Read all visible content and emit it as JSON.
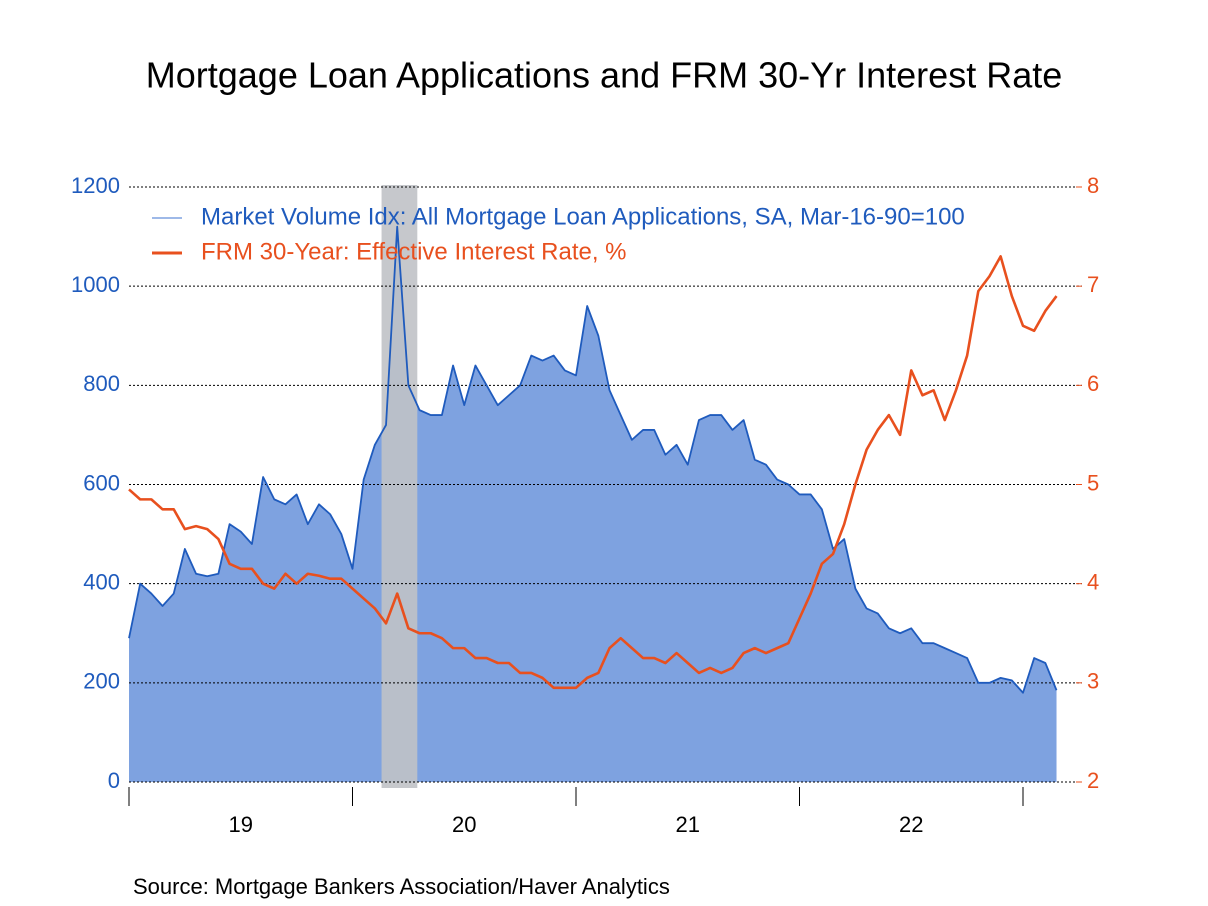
{
  "chart_data": {
    "type": "line",
    "title": "Mortgage Loan Applications and FRM 30-Yr Interest Rate",
    "source": "Source:  Mortgage Bankers Association/Haver Analytics",
    "x": [
      19,
      19.05,
      19.1,
      19.15,
      19.2,
      19.25,
      19.3,
      19.35,
      19.4,
      19.45,
      19.5,
      19.55,
      19.6,
      19.65,
      19.7,
      19.75,
      19.8,
      19.85,
      19.9,
      19.95,
      20,
      20.05,
      20.1,
      20.15,
      20.2,
      20.25,
      20.3,
      20.35,
      20.4,
      20.45,
      20.5,
      20.55,
      20.6,
      20.65,
      20.7,
      20.75,
      20.8,
      20.85,
      20.9,
      20.95,
      21,
      21.05,
      21.1,
      21.15,
      21.2,
      21.25,
      21.3,
      21.35,
      21.4,
      21.45,
      21.5,
      21.55,
      21.6,
      21.65,
      21.7,
      21.75,
      21.8,
      21.85,
      21.9,
      21.95,
      22,
      22.05,
      22.1,
      22.15,
      22.2,
      22.25,
      22.3,
      22.35,
      22.4,
      22.45,
      22.5,
      22.55,
      22.6,
      22.65,
      22.7,
      22.75,
      22.8,
      22.85,
      22.9,
      22.95,
      23,
      23.05,
      23.1,
      23.15
    ],
    "xlim": [
      19,
      23
    ],
    "xtick_marks": [
      19,
      20,
      21,
      22,
      23
    ],
    "xticks": [
      {
        "value": 19.5,
        "label": "19"
      },
      {
        "value": 20.5,
        "label": "20"
      },
      {
        "value": 21.5,
        "label": "21"
      },
      {
        "value": 22.5,
        "label": "22"
      }
    ],
    "shading": [
      20.13,
      20.29
    ],
    "shading_color": "#c0c2c6",
    "ylim": [
      0,
      1200
    ],
    "yticks": [
      0,
      200,
      400,
      600,
      800,
      1000,
      1200
    ],
    "y2lim": [
      2,
      8
    ],
    "y2ticks": [
      2,
      3,
      4,
      5,
      6,
      7,
      8
    ],
    "grid": true,
    "series": [
      {
        "name": "Market Volume Idx: All Mortgage Loan Applications, SA, Mar-16-90=100",
        "color": "#1f5bbd",
        "fill": "#7ea2e0",
        "area": true,
        "values": [
          290,
          400,
          380,
          355,
          380,
          470,
          420,
          415,
          420,
          520,
          505,
          480,
          615,
          570,
          560,
          580,
          520,
          560,
          540,
          500,
          430,
          610,
          680,
          720,
          1120,
          800,
          750,
          740,
          740,
          840,
          760,
          840,
          800,
          760,
          780,
          800,
          860,
          850,
          860,
          830,
          820,
          960,
          900,
          790,
          740,
          690,
          710,
          710,
          660,
          680,
          640,
          730,
          740,
          740,
          710,
          730,
          650,
          640,
          610,
          600,
          580,
          580,
          550,
          470,
          490,
          390,
          350,
          340,
          310,
          300,
          310,
          280,
          280,
          270,
          260,
          250,
          200,
          200,
          210,
          205,
          180,
          250,
          240,
          185
        ]
      },
      {
        "name": "FRM 30-Year: Effective Interest Rate, %",
        "color": "#e8501e",
        "axis": "y2",
        "values": [
          4.95,
          4.85,
          4.85,
          4.75,
          4.75,
          4.55,
          4.58,
          4.55,
          4.45,
          4.2,
          4.15,
          4.15,
          4.0,
          3.95,
          4.1,
          4.0,
          4.1,
          4.08,
          4.05,
          4.05,
          3.95,
          3.85,
          3.75,
          3.6,
          3.9,
          3.55,
          3.5,
          3.5,
          3.45,
          3.35,
          3.35,
          3.25,
          3.25,
          3.2,
          3.2,
          3.1,
          3.1,
          3.05,
          2.95,
          2.95,
          2.95,
          3.05,
          3.1,
          3.35,
          3.45,
          3.35,
          3.25,
          3.25,
          3.2,
          3.3,
          3.2,
          3.1,
          3.15,
          3.1,
          3.15,
          3.3,
          3.35,
          3.3,
          3.35,
          3.4,
          3.65,
          3.9,
          4.2,
          4.3,
          4.6,
          5.0,
          5.35,
          5.55,
          5.7,
          5.5,
          6.15,
          5.9,
          5.95,
          5.65,
          5.95,
          6.3,
          6.95,
          7.1,
          7.3,
          6.9,
          6.6,
          6.55,
          6.75,
          6.9
        ]
      }
    ]
  }
}
